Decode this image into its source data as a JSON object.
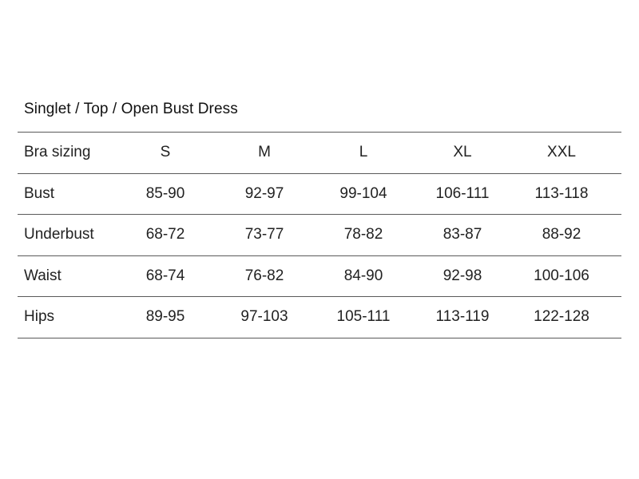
{
  "title": "Singlet / Top / Open Bust Dress",
  "table": {
    "header": [
      "Bra sizing",
      "S",
      "M",
      "L",
      "XL",
      "XXL"
    ],
    "rows": [
      [
        "Bust",
        "85-90",
        "92-97",
        "99-104",
        "106-111",
        "113-118"
      ],
      [
        "Underbust",
        "68-72",
        "73-77",
        "78-82",
        "83-87",
        "88-92"
      ],
      [
        "Waist",
        "68-74",
        "76-82",
        "84-90",
        "92-98",
        "100-106"
      ],
      [
        "Hips",
        "89-95",
        "97-103",
        "105-111",
        "113-119",
        "122-128"
      ]
    ]
  }
}
